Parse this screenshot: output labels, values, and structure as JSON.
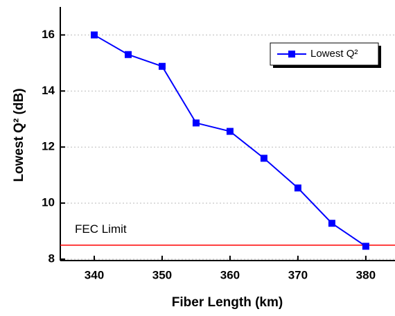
{
  "chart_data": {
    "type": "line",
    "x_label": "Fiber Length (km)",
    "y_label": "Lowest Q² (dB)",
    "x": [
      340,
      345,
      350,
      355,
      360,
      365,
      370,
      375,
      380
    ],
    "series": [
      {
        "name": "Lowest Q²",
        "color": "#0000ff",
        "values": [
          16.0,
          15.3,
          14.88,
          12.86,
          12.56,
          11.6,
          10.54,
          9.28,
          8.46
        ]
      }
    ],
    "xlim": [
      335,
      384.3
    ],
    "xticks": [
      340,
      350,
      360,
      370,
      380
    ],
    "ylim": [
      7.95,
      17
    ],
    "yticks": [
      8,
      10,
      12,
      14,
      16
    ],
    "grid": true,
    "legend": "upper right",
    "hline": {
      "value": 8.5,
      "label": "FEC Limit",
      "color": "#ff0000"
    }
  }
}
